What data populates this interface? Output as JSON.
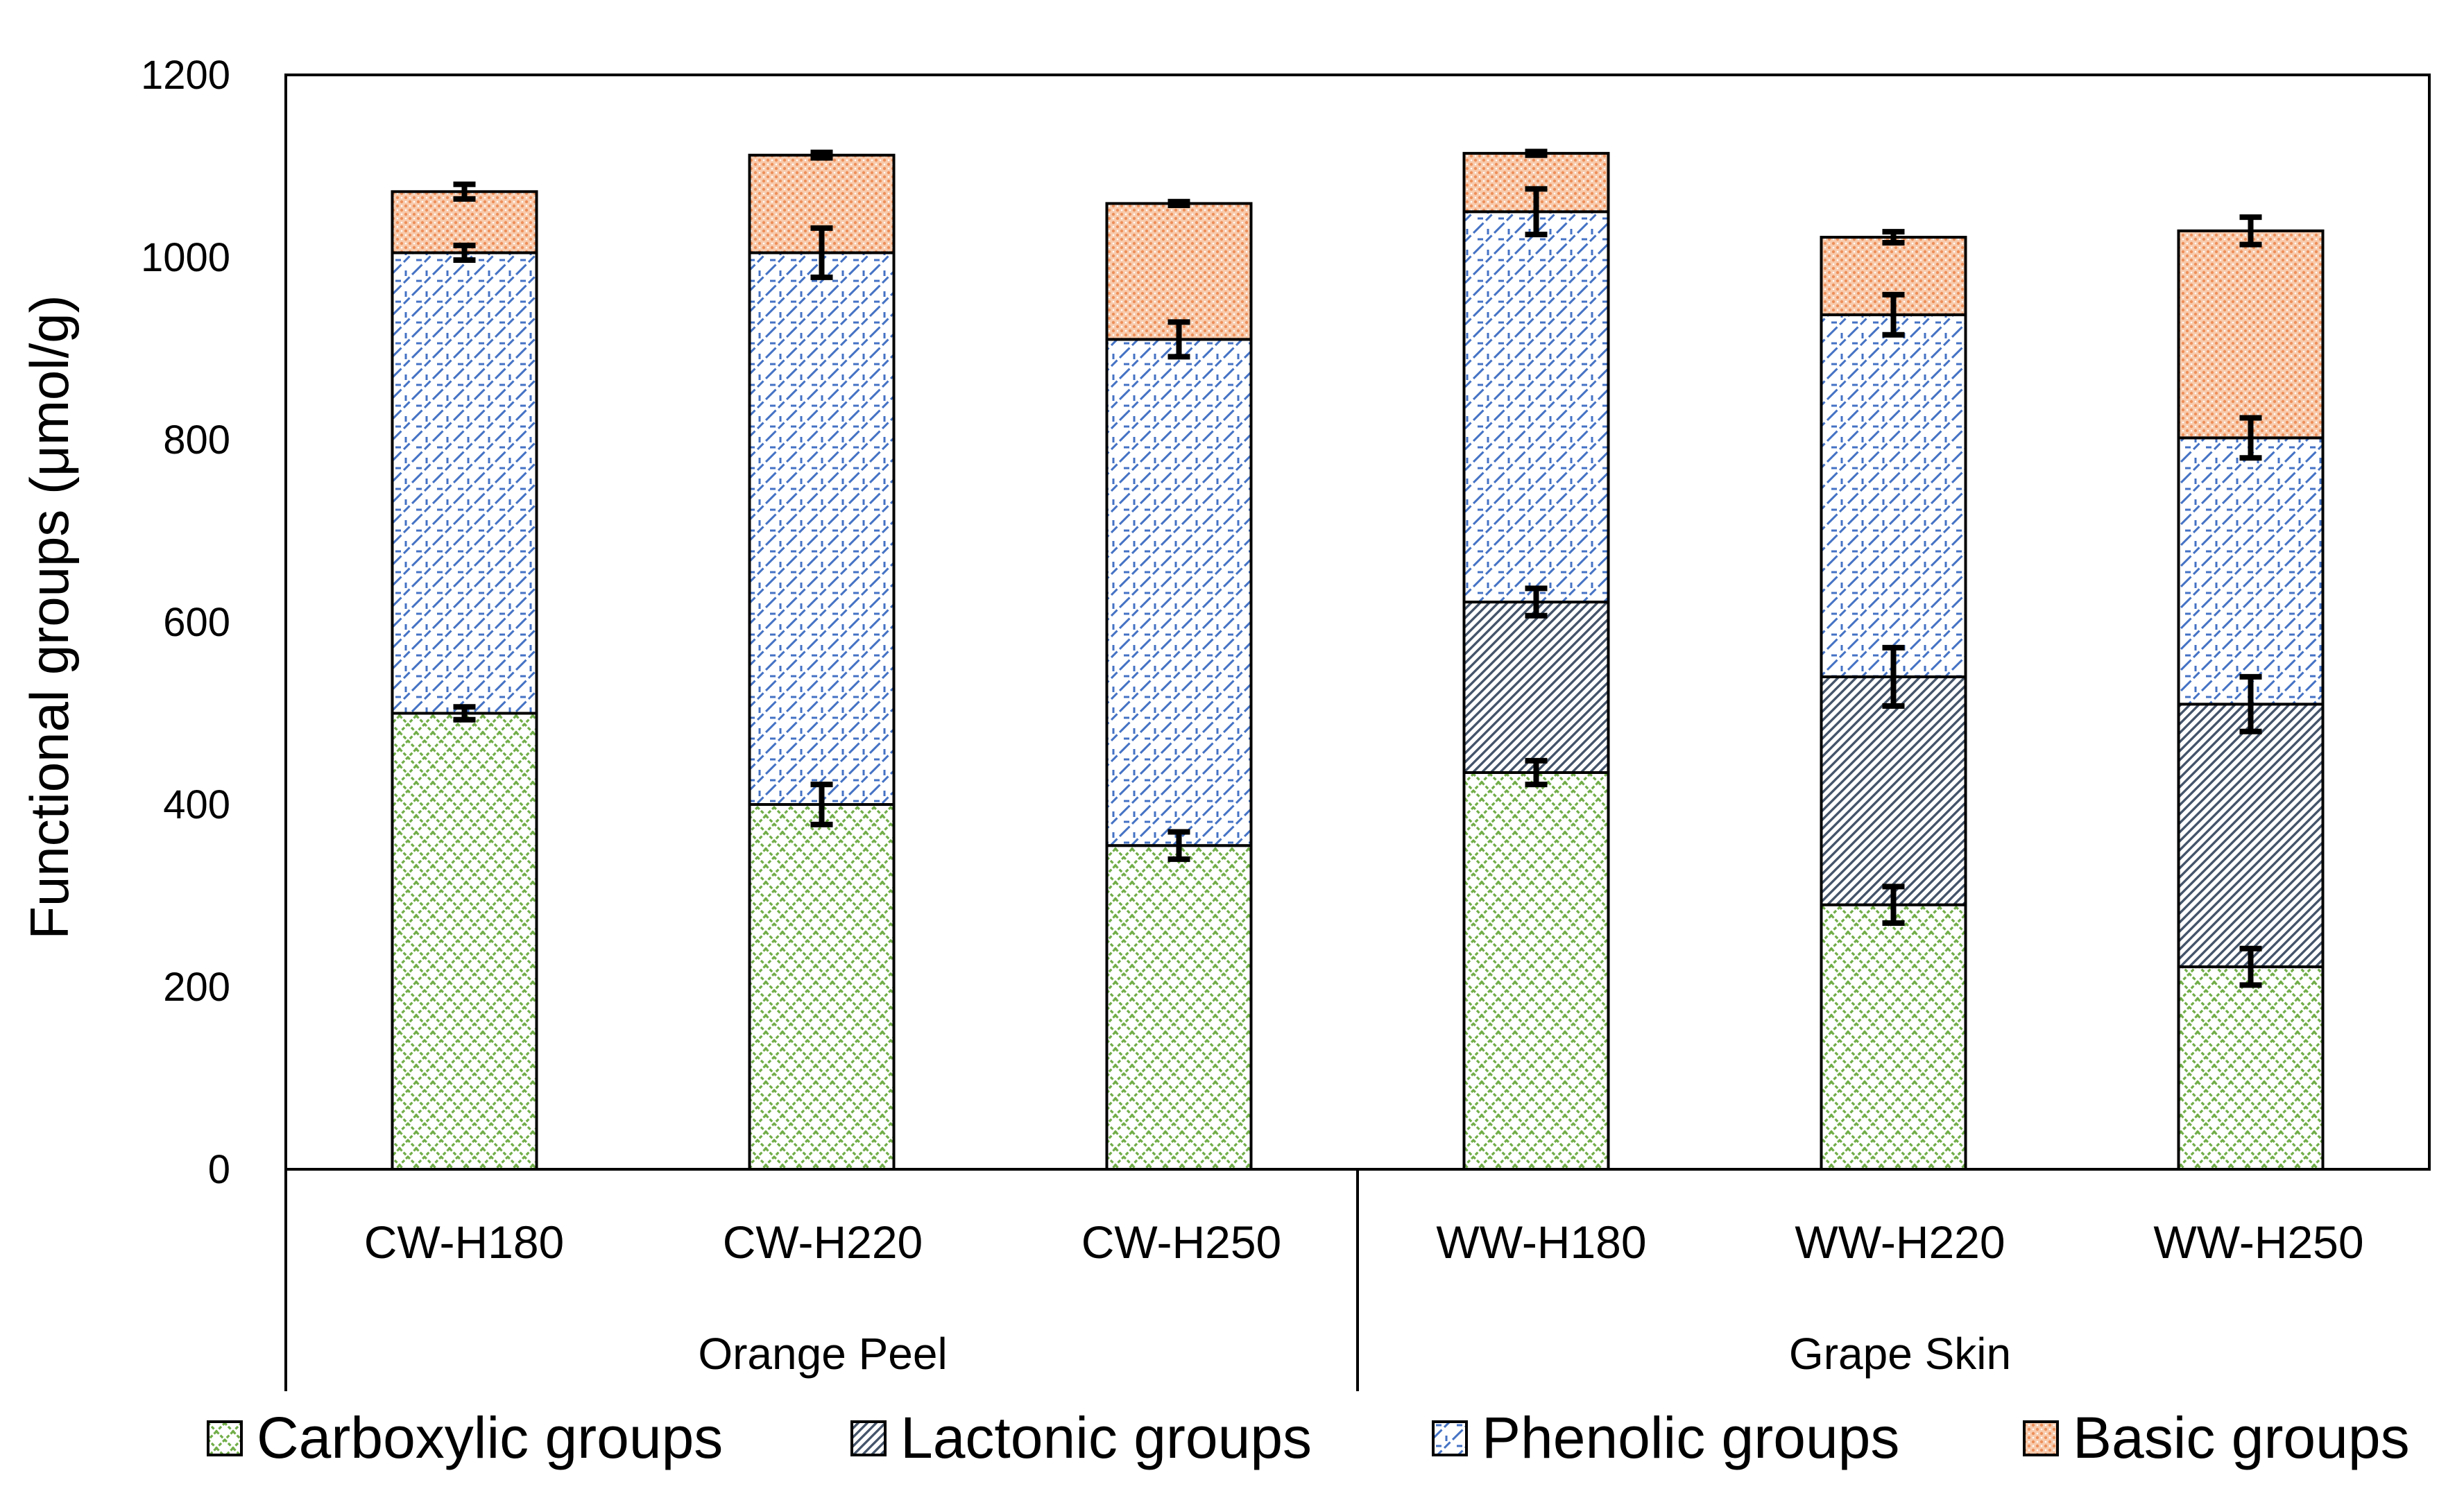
{
  "chart_data": {
    "type": "bar",
    "stacked": true,
    "title": "",
    "xlabel": "",
    "ylabel": "Functional groups (μmol/g)",
    "ylim": [
      0,
      1200
    ],
    "yticks": [
      0,
      200,
      400,
      600,
      800,
      1000,
      1200
    ],
    "grid": false,
    "legend_position": "bottom",
    "categories": [
      "CW-H180",
      "CW-H220",
      "CW-H250",
      "WW-H180",
      "WW-H220",
      "WW-H250"
    ],
    "groups": [
      {
        "label": "Orange Peel",
        "categories": [
          "CW-H180",
          "CW-H220",
          "CW-H250"
        ]
      },
      {
        "label": "Grape Skin",
        "categories": [
          "WW-H180",
          "WW-H220",
          "WW-H250"
        ]
      }
    ],
    "series": [
      {
        "name": "Carboxylic groups",
        "color": "#70AD47",
        "values": [
          500,
          400,
          355,
          435,
          290,
          222
        ],
        "errors": [
          7,
          22,
          15,
          13,
          20,
          20
        ]
      },
      {
        "name": "Lactonic groups",
        "color": "#44546A",
        "values": [
          0,
          0,
          0,
          187,
          250,
          288
        ],
        "errors": [
          0,
          0,
          0,
          15,
          32,
          30
        ]
      },
      {
        "name": "Phenolic groups",
        "color": "#4472C4",
        "values": [
          505,
          605,
          555,
          428,
          397,
          292
        ],
        "errors": [
          8,
          27,
          19,
          25,
          22,
          22
        ]
      },
      {
        "name": "Basic groups",
        "color": "#F4B183",
        "values": [
          67,
          107,
          149,
          64,
          85,
          227
        ],
        "errors": [
          8,
          3,
          2,
          2,
          6,
          15
        ]
      }
    ]
  }
}
